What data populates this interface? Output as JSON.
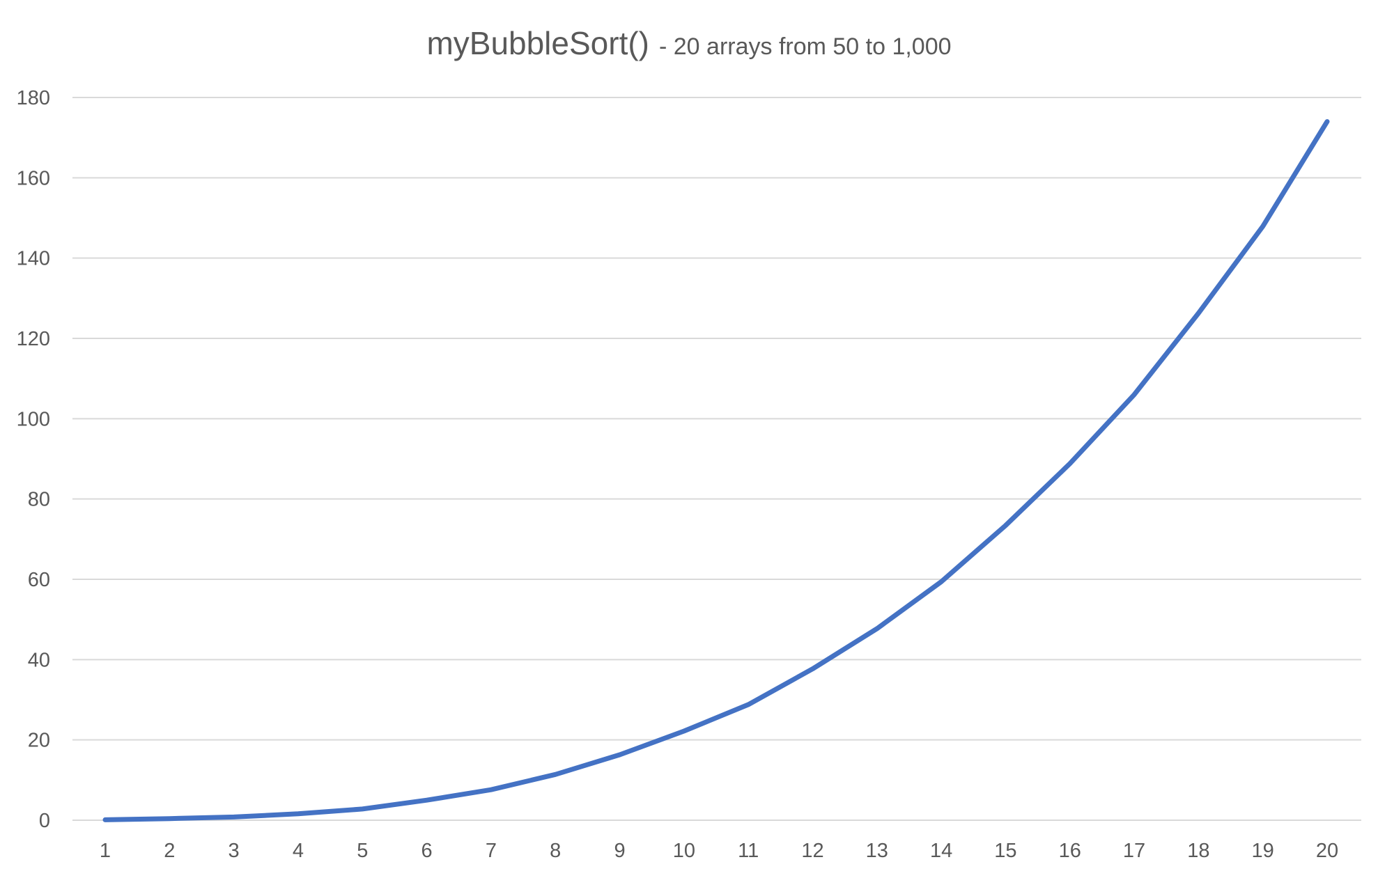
{
  "chart_data": {
    "type": "line",
    "title": "myBubbleSort()",
    "subtitle": "- 20 arrays from 50 to 1,000",
    "xlabel": "",
    "ylabel": "",
    "categories": [
      "1",
      "2",
      "3",
      "4",
      "5",
      "6",
      "7",
      "8",
      "9",
      "10",
      "11",
      "12",
      "13",
      "14",
      "15",
      "16",
      "17",
      "18",
      "19",
      "20"
    ],
    "series": [
      {
        "values": [
          0.1,
          0.4,
          0.8,
          1.6,
          2.8,
          5.0,
          7.6,
          11.4,
          16.3,
          22.2,
          28.8,
          37.7,
          47.7,
          59.4,
          73.4,
          88.8,
          106.0,
          126.3,
          147.9,
          174.0
        ],
        "color": "#4472c4"
      }
    ],
    "ylim": [
      0,
      180
    ],
    "yticks": [
      0,
      20,
      40,
      60,
      80,
      100,
      120,
      140,
      160,
      180
    ],
    "grid": true,
    "legend": "none"
  }
}
